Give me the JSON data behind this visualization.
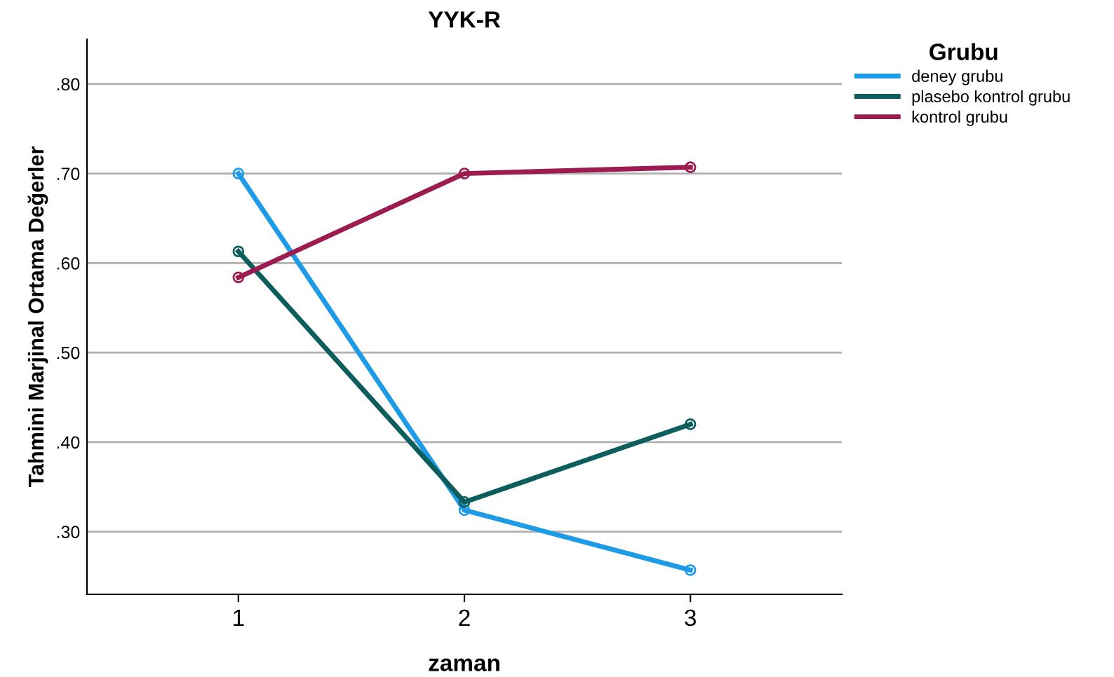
{
  "chart_data": {
    "type": "line",
    "title": "YYK-R",
    "xlabel": "zaman",
    "ylabel": "Tahmini Marjinal Ortama Değerler",
    "legend_title": "Grubu",
    "categories": [
      "1",
      "2",
      "3"
    ],
    "series": [
      {
        "name": "deney grubu",
        "color": "#1e9be6",
        "values": [
          0.7,
          0.324,
          0.257
        ]
      },
      {
        "name": "plasebo kontrol grubu",
        "color": "#0b5e5b",
        "values": [
          0.613,
          0.333,
          0.42
        ]
      },
      {
        "name": "kontrol grubu",
        "color": "#9c1c50",
        "values": [
          0.584,
          0.7,
          0.707
        ]
      }
    ],
    "ylim": [
      0.23,
      0.85
    ],
    "yticks": [
      {
        "value": 0.3,
        "label": ".30"
      },
      {
        "value": 0.4,
        "label": ".40"
      },
      {
        "value": 0.5,
        "label": ".50"
      },
      {
        "value": 0.6,
        "label": ".60"
      },
      {
        "value": 0.7,
        "label": ".70"
      },
      {
        "value": 0.8,
        "label": ".80"
      }
    ],
    "grid": "y",
    "legend": "right",
    "marker": "circle",
    "line_style": "solid"
  }
}
